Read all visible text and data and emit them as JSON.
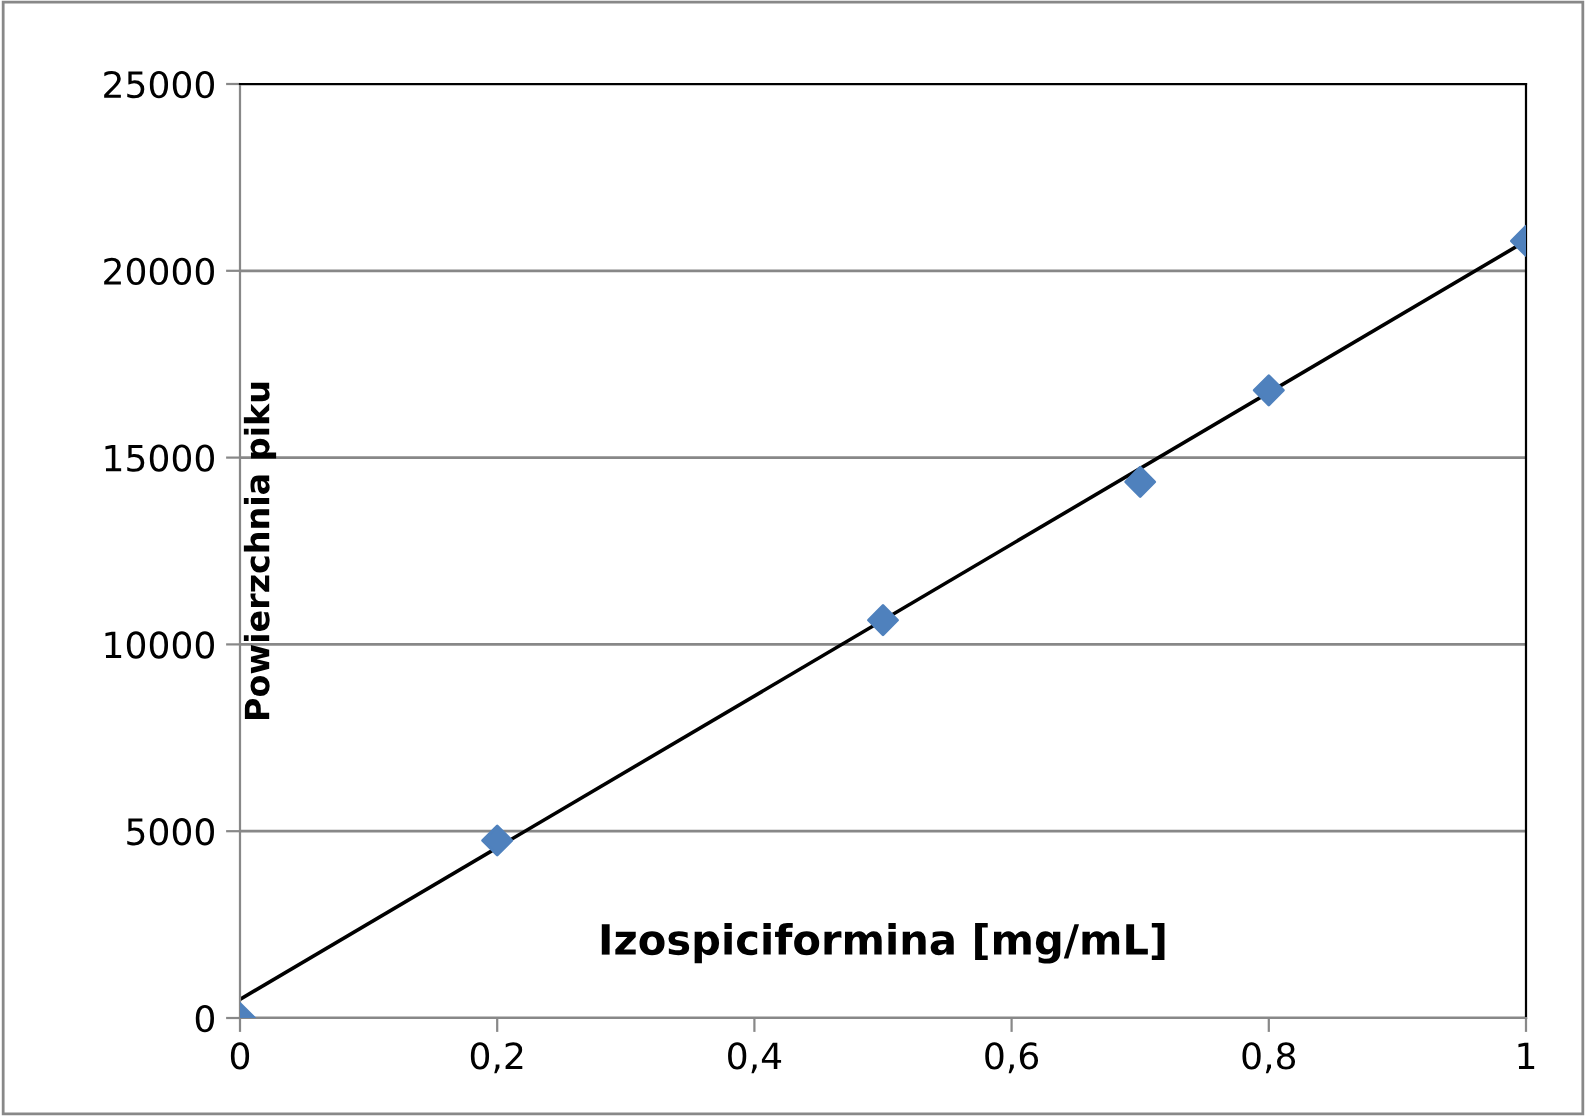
{
  "chart_data": {
    "type": "scatter",
    "xlabel": "Izospiciformina [mg/mL]",
    "ylabel": "Powierzchnia piku",
    "xlim": [
      0,
      1
    ],
    "ylim": [
      0,
      25000
    ],
    "xticks": [
      0,
      {
        "value": 0.2,
        "label": "0,2"
      },
      {
        "value": 0.4,
        "label": "0,4"
      },
      {
        "value": 0.6,
        "label": "0,6"
      },
      {
        "value": 0.8,
        "label": "0,8"
      },
      1
    ],
    "yticks": [
      0,
      5000,
      10000,
      15000,
      20000,
      25000
    ],
    "grid": "y",
    "legend": false,
    "series": [
      {
        "color": "#4f81bd",
        "marker": "diamond",
        "x": [
          0,
          0.2,
          0.5,
          0.7,
          0.8,
          1
        ],
        "values": [
          0,
          4750,
          10650,
          14350,
          16800,
          20800
        ]
      },
      {
        "type": "line",
        "color": "#000000",
        "marker": "none",
        "line_style": "solid",
        "x": [
          0,
          1
        ],
        "values": [
          500,
          20800
        ]
      }
    ]
  }
}
